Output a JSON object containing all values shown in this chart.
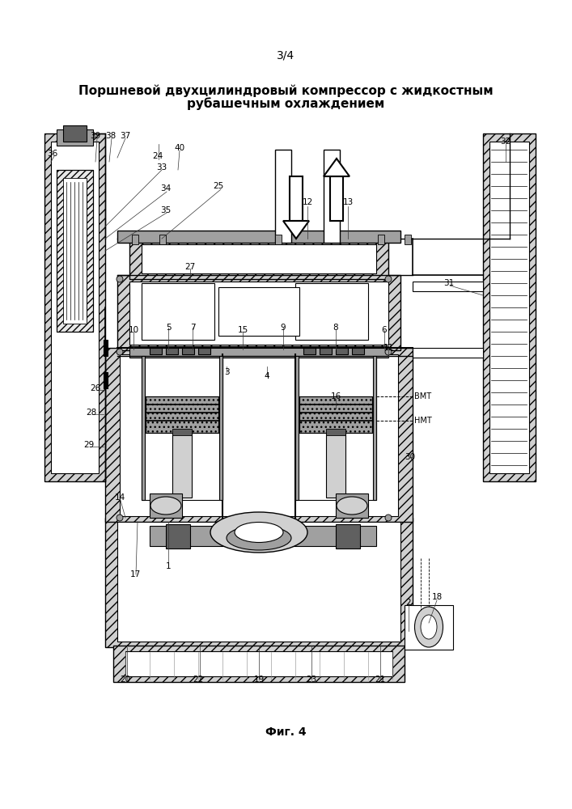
{
  "title_line1": "Поршневой двухцилиндровый компрессор с жидкостным",
  "title_line2": "рубашечным охлаждением",
  "page_label": "3/4",
  "fig_label": "Фиг. 4",
  "bg_color": "#ffffff",
  "line_color": "#000000",
  "hatch_color": "#000000",
  "title_fontsize": 11,
  "label_fontsize": 8.5,
  "fig_label_fontsize": 10
}
